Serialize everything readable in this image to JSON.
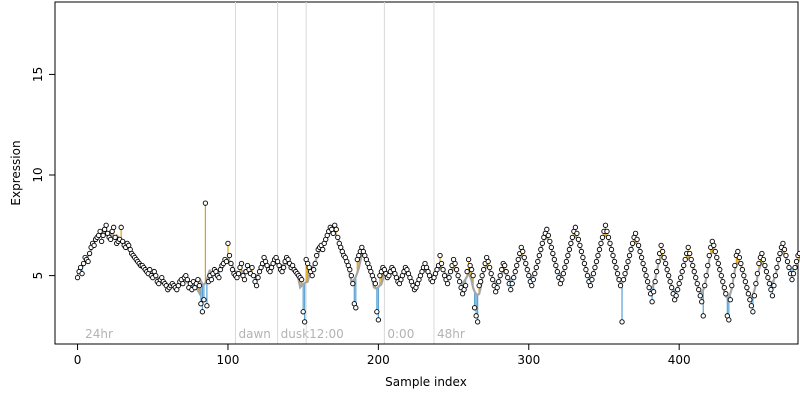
{
  "chart_data": {
    "type": "scatter",
    "xlabel": "Sample index",
    "ylabel": "Expression",
    "xlim": [
      -15,
      479
    ],
    "ylim": [
      1.6,
      18.6
    ],
    "xticks": [
      0,
      100,
      200,
      300,
      400
    ],
    "yticks": [
      5,
      10,
      15
    ],
    "grid": false,
    "region_markers": [
      {
        "x": 3,
        "label": "24hr",
        "line": false
      },
      {
        "x": 105,
        "label": "dawn",
        "line": true
      },
      {
        "x": 133,
        "label": "dusk",
        "line": true
      },
      {
        "x": 152,
        "label": "12:00",
        "line": true
      },
      {
        "x": 204,
        "label": "0:00",
        "line": true
      },
      {
        "x": 237,
        "label": "48hr",
        "line": true
      }
    ],
    "colors": {
      "up": "#e69f00",
      "down": "#56a0d3",
      "trend": "#a6a6a6",
      "point_stroke": "#000000",
      "point_fill": "#ffffff",
      "region_line": "#d9d9d9",
      "region_text": "#b3b3b3"
    },
    "series": [
      {
        "values": [
          4.9,
          5.2,
          5.4,
          5.1,
          5.6,
          5.9,
          5.8,
          5.7,
          6.1,
          6.4,
          6.6,
          6.5,
          6.8,
          6.9,
          7.0,
          7.2,
          6.7,
          7.0,
          7.3,
          7.5,
          7.1,
          6.9,
          6.8,
          7.2,
          7.4,
          6.9,
          6.6,
          6.7,
          6.8,
          7.4,
          6.7,
          6.5,
          6.4,
          6.6,
          6.5,
          6.3,
          6.1,
          6.0,
          5.9,
          5.8,
          5.7,
          5.6,
          5.5,
          5.5,
          5.4,
          5.3,
          5.2,
          5.1,
          5.3,
          5.0,
          4.9,
          5.2,
          5.0,
          4.7,
          4.6,
          4.8,
          4.9,
          4.7,
          4.6,
          4.5,
          4.3,
          4.4,
          4.5,
          4.6,
          4.5,
          4.4,
          4.3,
          4.5,
          4.7,
          4.8,
          4.6,
          4.9,
          5.0,
          4.8,
          4.4,
          4.6,
          4.3,
          4.7,
          4.4,
          4.6,
          4.8,
          4.5,
          3.6,
          3.2,
          3.8,
          8.6,
          3.5,
          4.7,
          5.0,
          4.8,
          5.1,
          5.3,
          5.2,
          5.0,
          4.9,
          5.3,
          5.5,
          5.6,
          5.8,
          5.7,
          6.6,
          6.0,
          5.6,
          5.3,
          5.1,
          5.0,
          4.9,
          5.1,
          5.4,
          5.6,
          5.0,
          4.8,
          5.2,
          5.5,
          5.3,
          5.1,
          5.4,
          5.0,
          4.7,
          4.5,
          4.9,
          5.2,
          5.4,
          5.6,
          5.9,
          5.7,
          5.5,
          5.3,
          5.2,
          5.4,
          5.6,
          5.8,
          5.9,
          5.7,
          5.5,
          5.3,
          5.2,
          5.4,
          5.7,
          5.9,
          5.8,
          5.6,
          5.4,
          5.5,
          5.3,
          5.2,
          5.1,
          5.0,
          4.9,
          4.8,
          3.2,
          2.7,
          5.8,
          5.6,
          5.4,
          5.2,
          5.0,
          5.3,
          5.6,
          6.0,
          6.3,
          6.4,
          6.5,
          6.3,
          6.6,
          6.8,
          7.0,
          7.2,
          7.4,
          7.3,
          7.1,
          7.5,
          7.3,
          6.9,
          6.6,
          6.4,
          6.2,
          6.0,
          5.9,
          5.7,
          5.5,
          5.3,
          5.0,
          4.6,
          3.6,
          3.4,
          5.8,
          6.0,
          6.2,
          6.4,
          6.2,
          6.0,
          5.8,
          5.6,
          5.4,
          5.2,
          5.0,
          4.8,
          4.6,
          3.2,
          2.8,
          5.0,
          5.2,
          5.4,
          5.3,
          5.1,
          4.9,
          5.0,
          5.2,
          5.4,
          5.3,
          5.1,
          4.9,
          4.7,
          4.6,
          4.8,
          5.0,
          5.2,
          5.4,
          5.3,
          5.1,
          4.9,
          4.7,
          4.5,
          4.3,
          4.4,
          4.6,
          4.8,
          5.0,
          5.2,
          5.4,
          5.6,
          5.4,
          5.2,
          5.0,
          4.8,
          4.7,
          4.9,
          5.1,
          5.3,
          5.5,
          6.0,
          5.6,
          5.3,
          5.0,
          4.8,
          4.6,
          4.9,
          5.2,
          5.5,
          5.8,
          5.6,
          5.3,
          5.0,
          4.7,
          4.4,
          4.1,
          4.3,
          4.5,
          5.2,
          5.8,
          5.5,
          5.3,
          5.0,
          3.4,
          3.0,
          2.7,
          4.5,
          4.7,
          5.0,
          5.3,
          5.6,
          5.9,
          5.7,
          5.4,
          5.1,
          4.8,
          4.5,
          4.2,
          4.4,
          4.7,
          5.0,
          5.3,
          5.6,
          5.5,
          5.2,
          4.9,
          4.6,
          4.3,
          4.6,
          4.9,
          5.2,
          5.5,
          5.8,
          6.1,
          6.4,
          6.2,
          5.9,
          5.6,
          5.3,
          5.0,
          4.7,
          4.5,
          4.8,
          5.1,
          5.4,
          5.7,
          6.0,
          6.3,
          6.6,
          6.9,
          7.1,
          7.3,
          7.0,
          6.7,
          6.4,
          6.1,
          5.8,
          5.5,
          5.2,
          4.9,
          4.6,
          4.8,
          5.1,
          5.4,
          5.7,
          6.0,
          6.3,
          6.6,
          6.9,
          7.2,
          7.4,
          7.1,
          6.8,
          6.5,
          6.2,
          5.9,
          5.6,
          5.3,
          5.0,
          4.7,
          4.5,
          4.8,
          5.1,
          5.4,
          5.7,
          6.0,
          6.3,
          6.6,
          6.9,
          7.2,
          7.5,
          7.2,
          6.9,
          6.6,
          6.3,
          6.0,
          5.7,
          5.4,
          5.1,
          4.8,
          4.5,
          2.7,
          4.8,
          5.1,
          5.4,
          5.7,
          6.0,
          6.3,
          6.6,
          6.9,
          7.1,
          6.8,
          6.5,
          6.2,
          5.9,
          5.6,
          5.3,
          5.0,
          4.7,
          4.4,
          4.1,
          3.7,
          4.2,
          4.7,
          5.2,
          5.7,
          6.1,
          6.5,
          6.2,
          5.9,
          5.6,
          5.3,
          5.0,
          4.7,
          4.4,
          4.1,
          3.8,
          4.0,
          4.3,
          4.6,
          4.9,
          5.2,
          5.5,
          5.8,
          6.1,
          6.4,
          6.1,
          5.8,
          5.5,
          5.2,
          4.9,
          4.6,
          4.3,
          4.0,
          3.7,
          3.0,
          4.5,
          5.0,
          5.5,
          6.0,
          6.4,
          6.7,
          6.5,
          6.2,
          5.9,
          5.6,
          5.3,
          5.0,
          4.7,
          4.4,
          4.1,
          3.0,
          2.8,
          3.8,
          4.5,
          5.0,
          5.5,
          6.0,
          6.2,
          5.9,
          5.6,
          5.3,
          5.0,
          4.7,
          4.4,
          4.1,
          3.8,
          3.5,
          3.2,
          4.0,
          4.6,
          5.1,
          5.6,
          5.9,
          6.1,
          5.8,
          5.5,
          5.2,
          4.9,
          4.6,
          4.3,
          4.0,
          4.5,
          5.0,
          5.4,
          5.8,
          6.1,
          6.4,
          6.6,
          6.3,
          6.0,
          5.7,
          5.4,
          5.1,
          4.8,
          5.1,
          5.4,
          5.7,
          6.0,
          6.1
        ]
      }
    ]
  }
}
